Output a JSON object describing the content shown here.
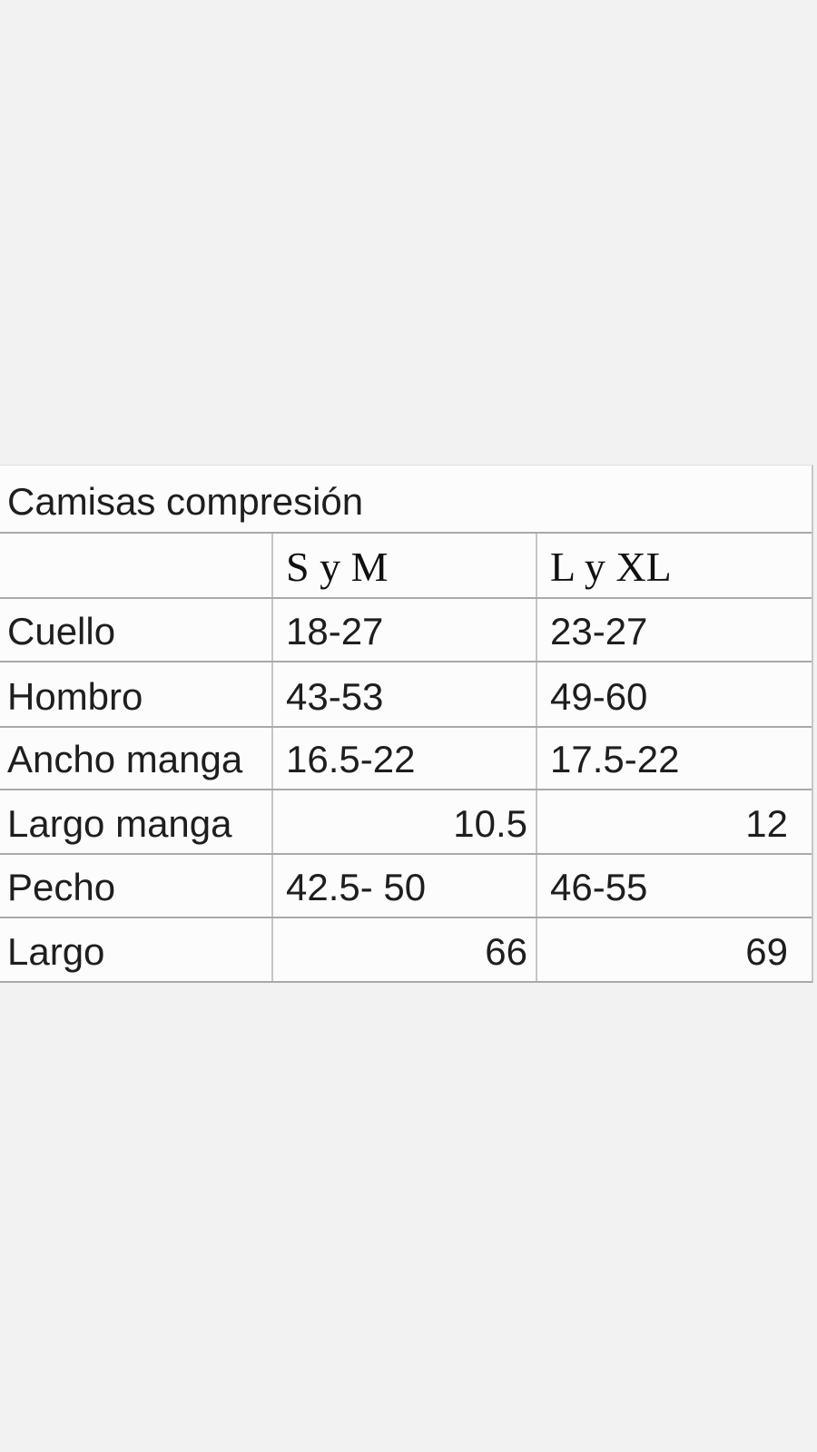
{
  "page": {
    "background_color": "#f2f2f2"
  },
  "table": {
    "title": "Camisas compresión",
    "size_headers": [
      "S y M",
      "L y XL"
    ],
    "rows": [
      {
        "label": "Cuello",
        "values": [
          "18-27",
          "23-27"
        ],
        "align": "left"
      },
      {
        "label": "Hombro",
        "values": [
          "43-53",
          "49-60"
        ],
        "align": "left"
      },
      {
        "label": "Ancho manga",
        "values": [
          "16.5-22",
          "17.5-22"
        ],
        "align": "left"
      },
      {
        "label": "Largo manga",
        "values": [
          "10.5",
          "12"
        ],
        "align": "right"
      },
      {
        "label": "Pecho",
        "values": [
          "42.5- 50",
          "46-55"
        ],
        "align": "left"
      },
      {
        "label": "Largo",
        "values": [
          "66",
          "69"
        ],
        "align": "right"
      }
    ],
    "colors": {
      "table_background": "#fcfcfc",
      "row_line": "#a9a9a9",
      "column_line": "#c6c6c6",
      "text": "#1e1e1e"
    }
  },
  "chart_data": {
    "type": "table",
    "title": "Camisas compresión",
    "columns": [
      "",
      "S y M",
      "L y XL"
    ],
    "rows": [
      [
        "Cuello",
        "18-27",
        "23-27"
      ],
      [
        "Hombro",
        "43-53",
        "49-60"
      ],
      [
        "Ancho manga",
        "16.5-22",
        "17.5-22"
      ],
      [
        "Largo manga",
        "10.5",
        "12"
      ],
      [
        "Pecho",
        "42.5- 50",
        "46-55"
      ],
      [
        "Largo",
        "66",
        "69"
      ]
    ]
  }
}
